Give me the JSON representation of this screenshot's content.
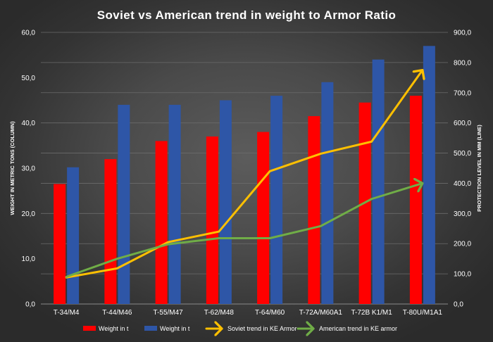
{
  "chart_data": {
    "type": "bar",
    "title": "Soviet vs American  trend  in  weight  to  Armor  Ratio",
    "categories": [
      "T-34/M4",
      "T-44/M46",
      "T-55/M47",
      "T-62/M48",
      "T-64/M60",
      "T-72A/M60A1",
      "T-72B K1/M1",
      "T-80U/M1A1"
    ],
    "ylabel": "WEIGHT IN METRIC TONS (COLUMN)",
    "y2label": "PROTECTION LEVEL IN MM (LINE)",
    "ylim": [
      0,
      60
    ],
    "y2lim": [
      0,
      900
    ],
    "yticks": [
      "0,0",
      "10,0",
      "20,0",
      "30,0",
      "40,0",
      "50,0",
      "60,0"
    ],
    "y2ticks": [
      "0,0",
      "100,0",
      "200,0",
      "300,0",
      "400,0",
      "500,0",
      "600,0",
      "700,0",
      "800,0",
      "900,0"
    ],
    "grid": true,
    "legend_position": "bottom",
    "series": [
      {
        "name": "Weight in t",
        "kind": "bar",
        "axis": "left",
        "color": "#ff0000",
        "values": [
          26.5,
          32,
          36,
          37,
          38,
          41.5,
          44.5,
          46
        ]
      },
      {
        "name": "Weight in t",
        "kind": "bar",
        "axis": "left",
        "color": "#2e56a7",
        "values": [
          30.2,
          44,
          44,
          45,
          46,
          49,
          54,
          57
        ]
      },
      {
        "name": "Soviet trend in KE Armor",
        "kind": "line",
        "axis": "right",
        "color": "#ffc000",
        "arrow_end": true,
        "values": [
          88,
          118,
          205,
          240,
          440,
          498,
          538,
          775
        ]
      },
      {
        "name": "American trend in KE armor",
        "kind": "line",
        "axis": "right",
        "color": "#70ad47",
        "arrow_end": true,
        "values": [
          90,
          150,
          198,
          218,
          218,
          258,
          348,
          400
        ]
      }
    ]
  }
}
